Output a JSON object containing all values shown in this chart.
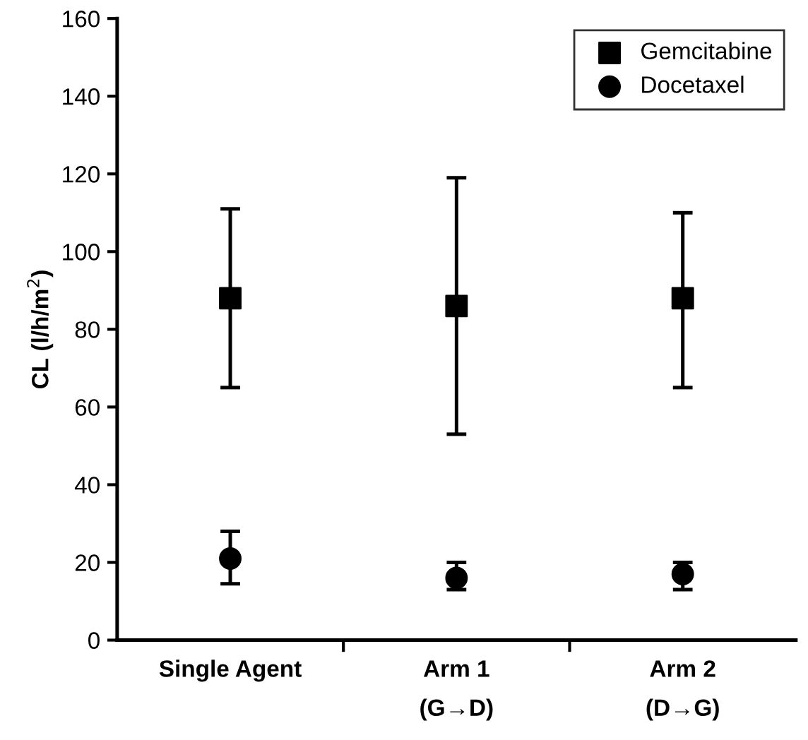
{
  "chart_data": {
    "type": "scatter",
    "ylabel": "CL (l/h/m$^{2}$)",
    "categories": [
      "Single Agent",
      "Arm 1\n(G→D)",
      "Arm 2\n(D→G)"
    ],
    "series": [
      {
        "name": "Gemcitabine",
        "color": "#000000",
        "marker": "square",
        "values": [
          88,
          86,
          88
        ],
        "errors": [
          [
            65,
            111
          ],
          [
            53,
            119
          ],
          [
            65,
            110
          ]
        ]
      },
      {
        "name": "Docetaxel",
        "color": "#000000",
        "marker": "circle",
        "values": [
          21,
          16,
          17
        ],
        "errors": [
          [
            14.5,
            28
          ],
          [
            13,
            20
          ],
          [
            13,
            20
          ]
        ]
      }
    ],
    "ylim": [
      0,
      160
    ],
    "yticks": [
      0,
      20,
      40,
      60,
      80,
      100,
      120,
      140,
      160
    ],
    "grid": false,
    "legend": "top right"
  }
}
